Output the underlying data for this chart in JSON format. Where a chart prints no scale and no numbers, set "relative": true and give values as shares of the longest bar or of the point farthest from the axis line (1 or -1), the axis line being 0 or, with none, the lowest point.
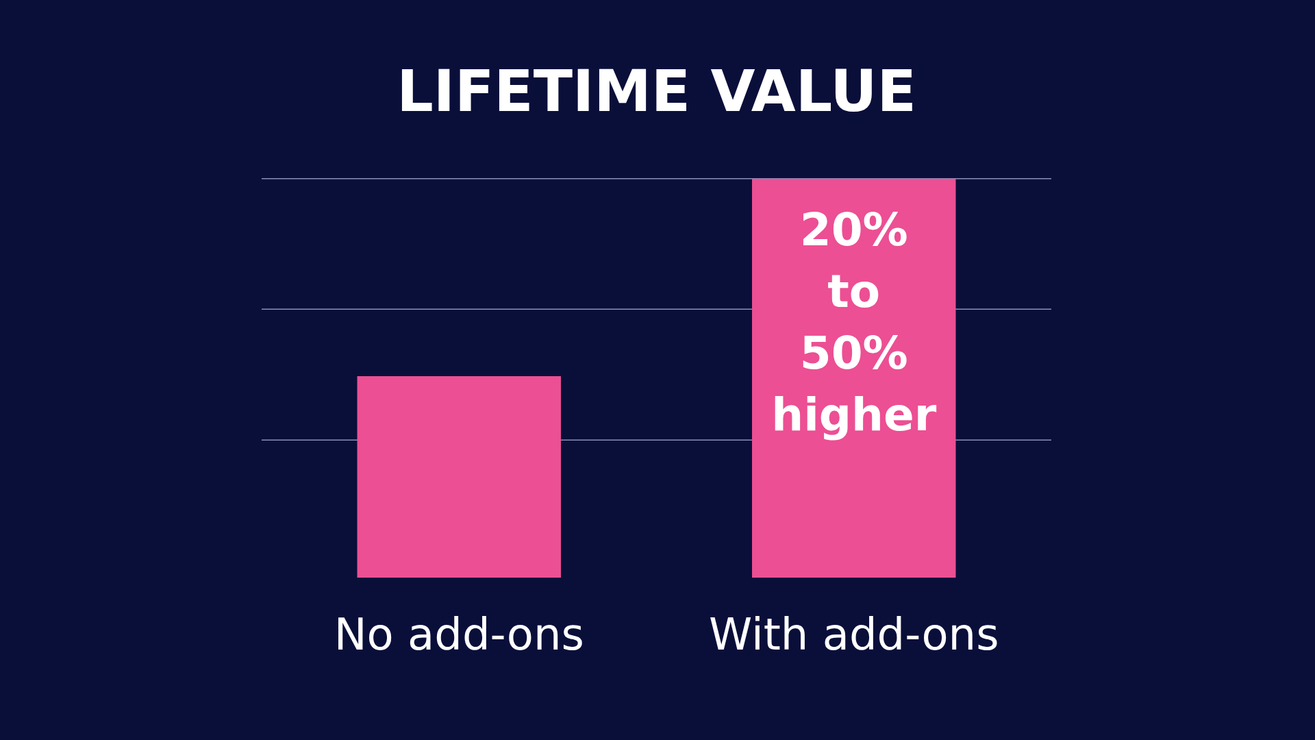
{
  "chart_data": {
    "type": "bar",
    "title": "LIFETIME VALUE",
    "relative": true,
    "categories": [
      "No add-ons",
      "With add-ons"
    ],
    "values": [
      0.505,
      1
    ],
    "color": "#ec4f93",
    "legend": false,
    "ref_lines": [
      {
        "axis": "y",
        "value": 0.345,
        "color": "#8a90b8"
      },
      {
        "axis": "y",
        "value": 0.673,
        "color": "#8a90b8"
      },
      {
        "axis": "y",
        "value": 1,
        "color": "#8a90b8"
      }
    ],
    "annotations": [
      "20% to 50% higher"
    ]
  }
}
